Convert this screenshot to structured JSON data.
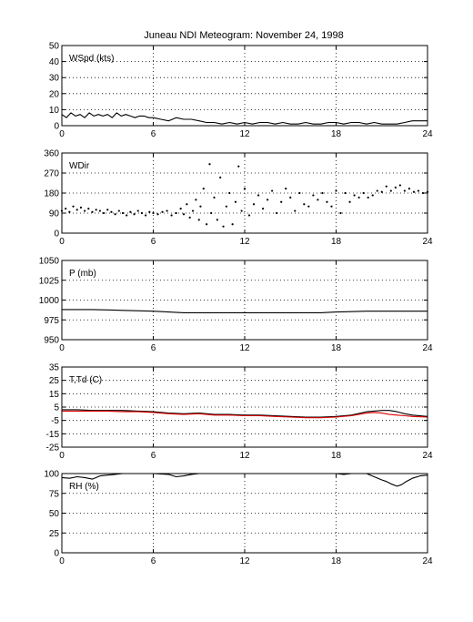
{
  "figure": {
    "title": "Juneau NDI Meteogram:  November 24, 1998"
  },
  "chart_data": [
    {
      "type": "line",
      "id": "wspd",
      "ylabel": "WSpd (kts)",
      "xlim": [
        0,
        24
      ],
      "ylim": [
        0,
        50
      ],
      "xticks": [
        0,
        6,
        12,
        18,
        24
      ],
      "yticks": [
        0,
        10,
        20,
        30,
        40,
        50
      ],
      "grid": true,
      "series": [
        {
          "color": "#000000",
          "style": "line",
          "x": [
            0,
            0.3,
            0.6,
            0.9,
            1.2,
            1.5,
            1.8,
            2.1,
            2.4,
            2.7,
            3.0,
            3.3,
            3.6,
            3.9,
            4.2,
            4.5,
            4.8,
            5.1,
            5.4,
            5.7,
            6.0,
            6.5,
            7.0,
            7.5,
            8.0,
            8.5,
            9.0,
            9.5,
            10.0,
            10.5,
            11.0,
            11.5,
            12.0,
            12.5,
            13.0,
            13.5,
            14.0,
            14.5,
            15.0,
            15.5,
            16.0,
            16.5,
            17.0,
            17.5,
            18.0,
            18.5,
            19.0,
            19.5,
            20.0,
            20.5,
            21.0,
            21.5,
            22.0,
            22.5,
            23.0,
            23.5,
            24.0
          ],
          "y": [
            7,
            5,
            8,
            6,
            7,
            5,
            8,
            6,
            7,
            6,
            7,
            5,
            8,
            6,
            7,
            6,
            5,
            6,
            6,
            5,
            5,
            4,
            3,
            5,
            4,
            4,
            3,
            2,
            2,
            1,
            2,
            1,
            2,
            1,
            2,
            2,
            1,
            2,
            1,
            1,
            2,
            1,
            1,
            2,
            2,
            1,
            2,
            2,
            1,
            2,
            1,
            1,
            1,
            2,
            3,
            3,
            3
          ]
        }
      ]
    },
    {
      "type": "scatter",
      "id": "wdir",
      "ylabel": "WDir",
      "xlim": [
        0,
        24
      ],
      "ylim": [
        0,
        360
      ],
      "xticks": [
        0,
        6,
        12,
        18,
        24
      ],
      "yticks": [
        0,
        90,
        180,
        270,
        360
      ],
      "grid": true,
      "series": [
        {
          "color": "#000000",
          "style": "dots",
          "x": [
            0,
            0.25,
            0.5,
            0.75,
            1.0,
            1.25,
            1.5,
            1.75,
            2.0,
            2.25,
            2.5,
            2.75,
            3.0,
            3.25,
            3.5,
            3.75,
            4.0,
            4.25,
            4.5,
            4.75,
            5.0,
            5.25,
            5.5,
            5.75,
            6.0,
            6.3,
            6.6,
            6.9,
            7.2,
            7.5,
            7.8,
            8.0,
            8.2,
            8.4,
            8.6,
            8.8,
            9.0,
            9.1,
            9.3,
            9.5,
            9.7,
            9.8,
            10.0,
            10.2,
            10.4,
            10.6,
            10.8,
            11.0,
            11.2,
            11.4,
            11.6,
            11.8,
            12.0,
            12.3,
            12.6,
            12.9,
            13.2,
            13.5,
            13.8,
            14.1,
            14.4,
            14.7,
            15.0,
            15.3,
            15.6,
            15.9,
            16.2,
            16.5,
            16.8,
            17.1,
            17.4,
            17.7,
            18.0,
            18.3,
            18.6,
            18.9,
            19.2,
            19.5,
            19.8,
            20.1,
            20.4,
            20.7,
            21.0,
            21.3,
            21.6,
            21.9,
            22.2,
            22.5,
            22.8,
            23.1,
            23.4,
            23.7,
            24.0
          ],
          "y": [
            100,
            110,
            95,
            120,
            105,
            115,
            100,
            110,
            95,
            105,
            100,
            90,
            105,
            95,
            85,
            100,
            90,
            80,
            95,
            85,
            100,
            90,
            80,
            95,
            90,
            85,
            95,
            100,
            80,
            90,
            110,
            85,
            130,
            70,
            100,
            150,
            60,
            120,
            200,
            40,
            310,
            90,
            160,
            60,
            250,
            30,
            120,
            180,
            40,
            140,
            300,
            100,
            200,
            80,
            130,
            170,
            110,
            150,
            190,
            90,
            140,
            200,
            160,
            100,
            180,
            130,
            120,
            170,
            150,
            180,
            140,
            120,
            190,
            90,
            180,
            140,
            170,
            160,
            180,
            160,
            170,
            190,
            185,
            210,
            190,
            205,
            215,
            190,
            200,
            185,
            190,
            180,
            185
          ]
        }
      ]
    },
    {
      "type": "line",
      "id": "pressure",
      "ylabel": "P (mb)",
      "xlim": [
        0,
        24
      ],
      "ylim": [
        950,
        1050
      ],
      "xticks": [
        0,
        6,
        12,
        18,
        24
      ],
      "yticks": [
        950,
        975,
        1000,
        1025,
        1050
      ],
      "grid": true,
      "series": [
        {
          "color": "#000000",
          "style": "line",
          "x": [
            0,
            2,
            4,
            6,
            7,
            8,
            10,
            12,
            14,
            16,
            17,
            18,
            20,
            22,
            24
          ],
          "y": [
            988,
            988,
            987,
            986,
            985,
            984,
            984,
            984,
            984,
            984,
            984,
            985,
            986,
            986,
            986
          ]
        }
      ]
    },
    {
      "type": "line",
      "id": "temp",
      "ylabel": "T,Td (C)",
      "xlim": [
        0,
        24
      ],
      "ylim": [
        -25,
        35
      ],
      "xticks": [
        0,
        6,
        12,
        18,
        24
      ],
      "yticks": [
        -25,
        -15,
        -5,
        5,
        15,
        25,
        35
      ],
      "grid": true,
      "series": [
        {
          "color": "#000000",
          "style": "line",
          "x": [
            0,
            1,
            2,
            3,
            4,
            5,
            6,
            7,
            8,
            9,
            10,
            11,
            12,
            13,
            14,
            15,
            16,
            17,
            18,
            19,
            20,
            20.5,
            21,
            21.5,
            22,
            22.5,
            23,
            24
          ],
          "y": [
            3,
            3,
            2.5,
            2.5,
            2.5,
            2,
            1.5,
            0.5,
            0,
            0.5,
            -0.5,
            -0.5,
            -1,
            -1,
            -1.5,
            -2,
            -2.5,
            -2.5,
            -2,
            -1,
            1.5,
            2,
            2.5,
            2.5,
            1.5,
            0,
            -1,
            -2
          ]
        },
        {
          "color": "#e00000",
          "style": "line",
          "x": [
            0,
            1,
            2,
            3,
            4,
            5,
            6,
            7,
            8,
            9,
            10,
            11,
            12,
            13,
            14,
            15,
            16,
            17,
            18,
            19,
            20,
            20.5,
            21,
            21.5,
            22,
            22.5,
            23,
            24
          ],
          "y": [
            2,
            2,
            2,
            2,
            1.5,
            1.5,
            1,
            0,
            -0.5,
            0,
            -1,
            -1,
            -1.5,
            -1.5,
            -2,
            -2.5,
            -3,
            -3,
            -2.5,
            -1.5,
            0.5,
            1,
            0.5,
            -0.5,
            -1,
            -1.5,
            -2,
            -2.5
          ]
        }
      ]
    },
    {
      "type": "line",
      "id": "rh",
      "ylabel": "RH (%)",
      "xlim": [
        0,
        24
      ],
      "ylim": [
        0,
        100
      ],
      "xticks": [
        0,
        6,
        12,
        18,
        24
      ],
      "yticks": [
        0,
        25,
        50,
        75,
        100
      ],
      "grid": true,
      "series": [
        {
          "color": "#000000",
          "style": "line",
          "x": [
            0,
            0.5,
            1,
            1.5,
            2,
            2.5,
            3,
            3.5,
            4,
            5,
            6,
            7,
            7.5,
            8,
            8.5,
            9,
            9.5,
            10,
            18,
            18.5,
            19,
            20,
            20.5,
            21,
            21.3,
            21.6,
            22,
            22.3,
            22.6,
            23,
            23.5,
            24
          ],
          "y": [
            95,
            94,
            96,
            95,
            93,
            97,
            98,
            99,
            100,
            100,
            100,
            99,
            96,
            97,
            99,
            100,
            100,
            100,
            100,
            99,
            100,
            100,
            96,
            92,
            90,
            87,
            84,
            86,
            90,
            94,
            97,
            98
          ]
        }
      ]
    }
  ]
}
